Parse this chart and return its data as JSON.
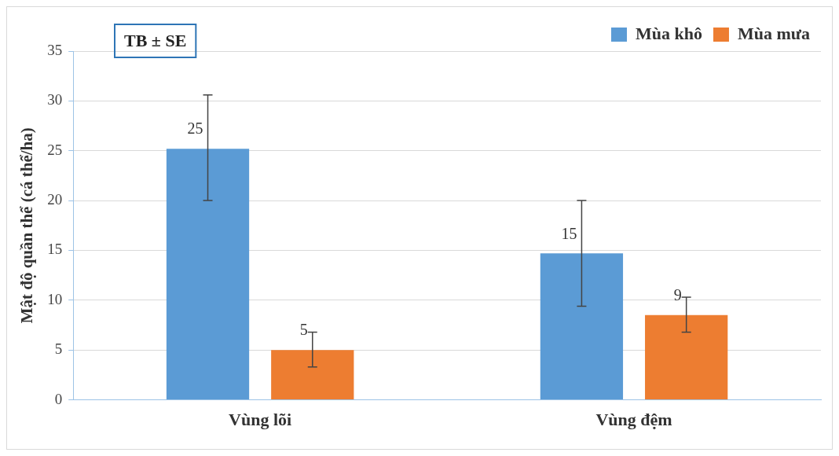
{
  "chart_data": {
    "type": "bar",
    "ylabel": "Mật độ quần thể (cá thể/ha)",
    "categories": [
      "Vùng lõi",
      "Vùng đệm"
    ],
    "series": [
      {
        "name": "Mùa khô",
        "color": "#5b9bd5",
        "values": [
          25.2,
          14.7
        ],
        "errors": [
          [
            20.0,
            30.6
          ],
          [
            9.4,
            20.0
          ]
        ],
        "value_labels": [
          "25",
          "15"
        ]
      },
      {
        "name": "Mùa mưa",
        "color": "#ed7d31",
        "values": [
          5.0,
          8.5
        ],
        "errors": [
          [
            3.3,
            6.8
          ],
          [
            6.8,
            10.3
          ]
        ],
        "value_labels": [
          "5",
          "9"
        ]
      }
    ],
    "ylim": [
      0,
      35
    ],
    "yticks": [
      0,
      5,
      10,
      15,
      20,
      25,
      30,
      35
    ],
    "grid": "y",
    "legend": "top right",
    "annotations": [
      "TB ± SE"
    ]
  }
}
